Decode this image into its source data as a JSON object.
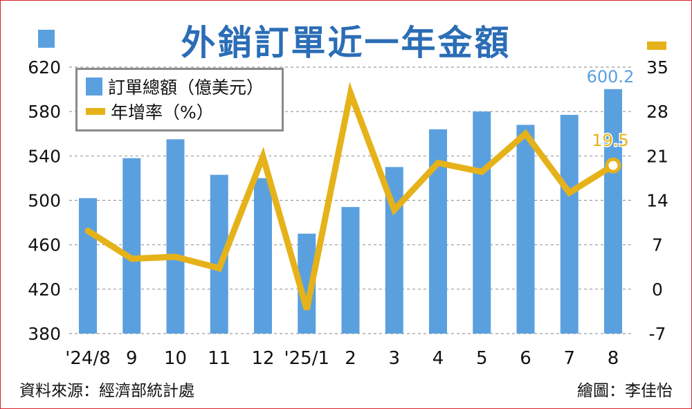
{
  "title": "外銷訂單近一年金額",
  "source": "資料來源：經濟部統計處",
  "credit": "繪圖：李佳怡",
  "legend": {
    "bar_label": "訂單總額（億美元）",
    "line_label": "年增率（%）"
  },
  "colors": {
    "bar": "#5aa0df",
    "line": "#e5b21a",
    "title": "#2b6db6",
    "border": "#d8222a"
  },
  "chart_data": {
    "type": "bar+line",
    "categories": [
      "'24/8",
      "9",
      "10",
      "11",
      "12",
      "'25/1",
      "2",
      "3",
      "4",
      "5",
      "6",
      "7",
      "8"
    ],
    "series": [
      {
        "name": "訂單總額（億美元）",
        "type": "bar",
        "axis": "left",
        "values": [
          502,
          538,
          555,
          523,
          520,
          470,
          494,
          530,
          564,
          580,
          568,
          577,
          600.2
        ]
      },
      {
        "name": "年增率（%）",
        "type": "line",
        "axis": "right",
        "values": [
          9.2,
          4.8,
          5.1,
          3.3,
          20.9,
          -3.2,
          30.9,
          12.5,
          19.9,
          18.5,
          24.5,
          15.2,
          19.5
        ]
      }
    ],
    "y_left": {
      "min": 380,
      "max": 620,
      "ticks": [
        "380",
        "420",
        "460",
        "500",
        "540",
        "580",
        "620"
      ]
    },
    "y_right": {
      "min": -7,
      "max": 35,
      "ticks": [
        "-7",
        "0",
        "7",
        "14",
        "21",
        "28",
        "35"
      ]
    },
    "annotations": [
      {
        "series": "bar",
        "index": 12,
        "text": "600.2"
      },
      {
        "series": "line",
        "index": 12,
        "text": "19.5"
      }
    ],
    "grid": "horizontal dashed",
    "legend_position": "top-left"
  }
}
